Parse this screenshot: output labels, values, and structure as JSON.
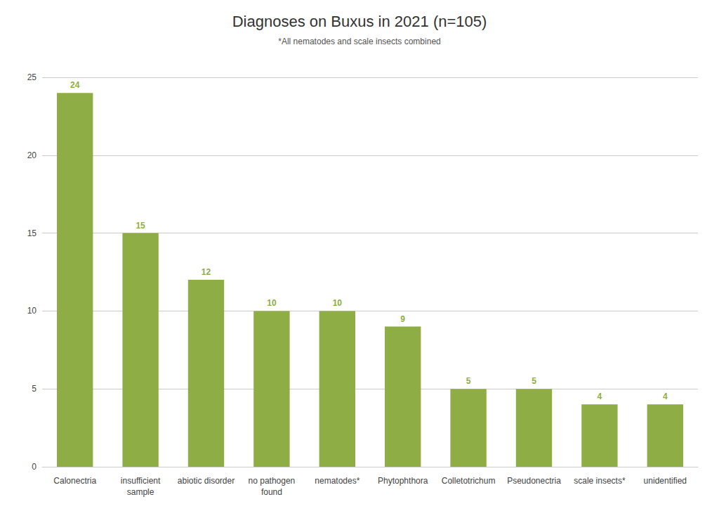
{
  "chart_data": {
    "type": "bar",
    "title": "Diagnoses on Buxus in 2021 (n=105)",
    "annotation": "*All nematodes and scale insects combined",
    "categories": [
      "Calonectria",
      "insufficient\nsample",
      "abiotic disorder",
      "no pathogen\nfound",
      "nematodes*",
      "Phytophthora",
      "Colletotrichum",
      "Pseudonectria",
      "scale insects*",
      "unidentified"
    ],
    "values": [
      24,
      15,
      12,
      10,
      10,
      9,
      5,
      5,
      4,
      4
    ],
    "color": "#8fad45",
    "ylim": [
      0,
      25
    ],
    "yticks": [
      0,
      5,
      10,
      15,
      20,
      25
    ],
    "grid": true,
    "data_labels": true
  }
}
